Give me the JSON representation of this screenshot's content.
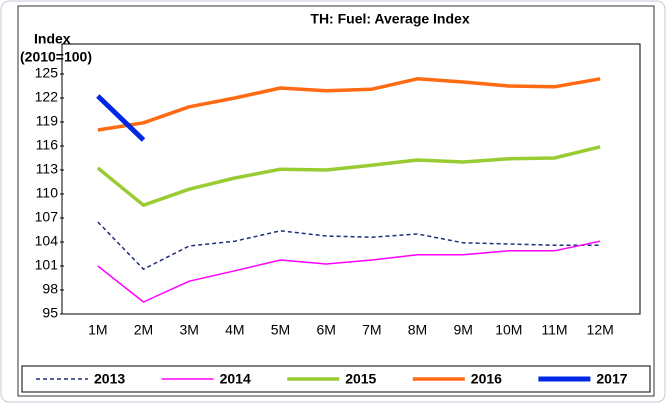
{
  "chart_data": {
    "type": "line",
    "title": "TH: Fuel: Average Index",
    "ylabel": [
      "Index",
      "(2010=100)"
    ],
    "categories": [
      "1M",
      "2M",
      "3M",
      "4M",
      "5M",
      "6M",
      "7M",
      "8M",
      "9M",
      "10M",
      "11M",
      "12M"
    ],
    "ylim": [
      95,
      125
    ],
    "yticks": [
      95,
      98,
      101,
      104,
      107,
      110,
      113,
      116,
      119,
      122,
      125
    ],
    "legend": "bottom",
    "series": [
      {
        "name": "2013",
        "color": "#1f2f7a",
        "values": [
          106.5,
          100.6,
          103.5,
          104.1,
          105.4,
          104.75,
          104.6,
          105,
          103.9,
          103.75,
          103.6,
          103.6
        ]
      },
      {
        "name": "2014",
        "color": "#ff00ff",
        "values": [
          101,
          96.5,
          99.1,
          100.4,
          101.75,
          101.25,
          101.75,
          102.4,
          102.4,
          102.9,
          102.9,
          104.1
        ]
      },
      {
        "name": "2015",
        "color": "#99cc33",
        "values": [
          113.25,
          108.6,
          110.6,
          112,
          113.1,
          113,
          113.6,
          114.25,
          114,
          114.4,
          114.5,
          115.9
        ]
      },
      {
        "name": "2016",
        "color": "#ff6a13",
        "values": [
          118,
          118.9,
          120.9,
          122,
          123.25,
          122.9,
          123.1,
          124.4,
          124,
          123.5,
          123.4,
          124.4
        ]
      },
      {
        "name": "2017",
        "color": "#0026e6",
        "values": [
          122.25,
          116.75,
          null,
          null,
          null,
          null,
          null,
          null,
          null,
          null,
          null,
          null
        ]
      }
    ]
  }
}
